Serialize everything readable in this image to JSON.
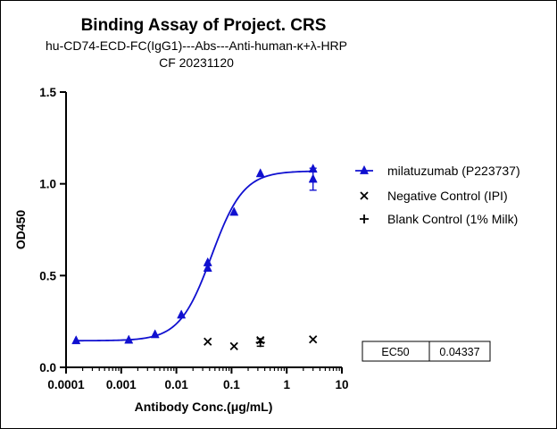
{
  "chart_data": {
    "type": "scatter",
    "title": "Binding Assay of Project. CRS",
    "subtitle_lines": [
      "hu-CD74-ECD-FC(IgG1)---Abs---Anti-human-κ+λ-HRP",
      "CF 20231120"
    ],
    "xlabel": "Antibody Conc.(μg/mL)",
    "ylabel": "OD450",
    "x_scale": "log",
    "xlim": [
      0.0001,
      10
    ],
    "ylim": [
      0,
      1.5
    ],
    "x_tick_labels": [
      "0.0001",
      "0.001",
      "0.01",
      "0.1",
      "1",
      "10"
    ],
    "y_tick_labels": [
      "0.0",
      "0.5",
      "1.0",
      "1.5"
    ],
    "x_ticks": [
      0.0001,
      0.001,
      0.01,
      0.1,
      1,
      10
    ],
    "y_ticks": [
      0,
      0.5,
      1.0,
      1.5
    ],
    "grid": false,
    "legend_position": "right",
    "series": [
      {
        "name": "milatuzumab (P223737)",
        "marker": "triangle",
        "color": "#1010d0",
        "fit_curve": true,
        "fit": {
          "bottom": 0.145,
          "top": 1.07,
          "ec50": 0.04337,
          "hill": 1.5
        },
        "points": [
          {
            "x": 0.000152,
            "y": 0.145
          },
          {
            "x": 0.00137,
            "y": 0.148
          },
          {
            "x": 0.0041,
            "y": 0.178
          },
          {
            "x": 0.0123,
            "y": 0.285
          },
          {
            "x": 0.037,
            "y": 0.54,
            "err": 0.015
          },
          {
            "x": 0.037,
            "y": 0.57
          },
          {
            "x": 0.111,
            "y": 0.845
          },
          {
            "x": 0.333,
            "y": 1.055
          },
          {
            "x": 3.0,
            "y": 1.08
          },
          {
            "x": 3.0,
            "y": 1.025,
            "err": 0.06
          }
        ]
      },
      {
        "name": "Negative Control (IPI)",
        "marker": "x",
        "color": "#000000",
        "points": [
          {
            "x": 0.037,
            "y": 0.14
          },
          {
            "x": 0.111,
            "y": 0.115
          },
          {
            "x": 0.333,
            "y": 0.148
          },
          {
            "x": 3.0,
            "y": 0.152
          }
        ]
      },
      {
        "name": "Blank Control (1% Milk)",
        "marker": "plus",
        "color": "#000000",
        "points": [
          {
            "x": 0.333,
            "y": 0.135,
            "err": 0.02
          }
        ]
      }
    ],
    "table": {
      "label": "EC50",
      "value": "0.04337"
    }
  }
}
